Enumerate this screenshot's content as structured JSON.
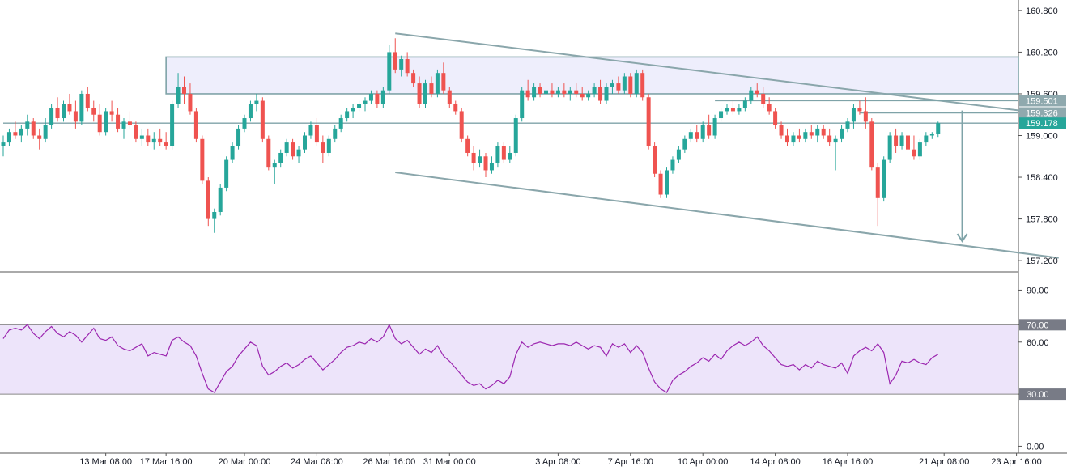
{
  "chart_data": [
    {
      "type": "candlestick",
      "price_ticks": [
        157.2,
        157.8,
        158.4,
        159.0,
        159.6,
        160.2,
        160.8
      ],
      "price_tick_labels": [
        "157.200",
        "157.800",
        "158.400",
        "159.000",
        "159.600",
        "160.200",
        "160.800"
      ],
      "ylim": [
        157.05,
        160.95
      ],
      "price_markers": [
        {
          "label": "159.501",
          "value": 159.501,
          "color": "#8fa9ae"
        },
        {
          "label": "159.326",
          "value": 159.326,
          "color": "#8fa9ae"
        },
        {
          "label": "159.178",
          "value": 159.178,
          "color": "#26a69a"
        }
      ],
      "x_tick_labels": [
        "13 Mar 08:00",
        "17 Mar 16:00",
        "20 Mar 00:00",
        "24 Mar 08:00",
        "26 Mar 16:00",
        "31 Mar 00:00",
        "3 Apr 08:00",
        "7 Apr 16:00",
        "10 Apr 00:00",
        "14 Apr 08:00",
        "16 Apr 16:00",
        "21 Apr 08:00",
        "23 Apr 16:00"
      ],
      "x_tick_index": [
        17,
        27,
        40,
        52,
        64,
        74,
        92,
        104,
        116,
        128,
        140,
        156,
        168
      ],
      "ohlc": [
        [
          158.85,
          159.0,
          158.7,
          158.9
        ],
        [
          158.9,
          159.1,
          158.85,
          159.05
        ],
        [
          159.05,
          159.2,
          158.95,
          159.0
        ],
        [
          159.0,
          159.15,
          158.9,
          159.1
        ],
        [
          159.1,
          159.3,
          159.0,
          159.2
        ],
        [
          159.2,
          159.25,
          158.95,
          159.0
        ],
        [
          159.0,
          159.1,
          158.8,
          158.95
        ],
        [
          158.95,
          159.25,
          158.9,
          159.15
        ],
        [
          159.15,
          159.45,
          159.1,
          159.4
        ],
        [
          159.4,
          159.55,
          159.2,
          159.25
        ],
        [
          159.25,
          159.5,
          159.2,
          159.45
        ],
        [
          159.45,
          159.6,
          159.3,
          159.35
        ],
        [
          159.35,
          159.5,
          159.1,
          159.2
        ],
        [
          159.2,
          159.65,
          159.15,
          159.6
        ],
        [
          159.6,
          159.7,
          159.35,
          159.4
        ],
        [
          159.4,
          159.5,
          159.2,
          159.3
        ],
        [
          159.3,
          159.45,
          159.0,
          159.05
        ],
        [
          159.05,
          159.4,
          159.0,
          159.35
        ],
        [
          159.35,
          159.5,
          159.2,
          159.3
        ],
        [
          159.3,
          159.4,
          159.05,
          159.1
        ],
        [
          159.1,
          159.25,
          158.95,
          159.2
        ],
        [
          159.2,
          159.35,
          159.1,
          159.15
        ],
        [
          159.15,
          159.2,
          158.9,
          158.95
        ],
        [
          158.95,
          159.1,
          158.85,
          159.0
        ],
        [
          159.0,
          159.1,
          158.85,
          158.9
        ],
        [
          158.9,
          159.05,
          158.8,
          158.95
        ],
        [
          158.95,
          159.1,
          158.85,
          158.9
        ],
        [
          158.9,
          159.05,
          158.8,
          158.85
        ],
        [
          158.85,
          159.5,
          158.8,
          159.45
        ],
        [
          159.45,
          159.9,
          159.4,
          159.7
        ],
        [
          159.7,
          159.85,
          159.45,
          159.6
        ],
        [
          159.6,
          159.75,
          159.3,
          159.35
        ],
        [
          159.35,
          159.4,
          158.9,
          158.95
        ],
        [
          158.95,
          159.0,
          158.3,
          158.35
        ],
        [
          158.35,
          158.4,
          157.7,
          157.8
        ],
        [
          157.8,
          157.95,
          157.6,
          157.9
        ],
        [
          157.9,
          158.3,
          157.85,
          158.25
        ],
        [
          158.25,
          158.7,
          158.2,
          158.65
        ],
        [
          158.65,
          158.9,
          158.6,
          158.85
        ],
        [
          158.85,
          159.15,
          158.8,
          159.1
        ],
        [
          159.1,
          159.3,
          159.05,
          159.25
        ],
        [
          159.25,
          159.5,
          159.2,
          159.45
        ],
        [
          159.45,
          159.6,
          159.35,
          159.5
        ],
        [
          159.5,
          159.55,
          158.9,
          158.95
        ],
        [
          158.95,
          159.0,
          158.5,
          158.55
        ],
        [
          158.55,
          158.65,
          158.3,
          158.6
        ],
        [
          158.6,
          158.8,
          158.55,
          158.75
        ],
        [
          158.75,
          158.95,
          158.7,
          158.9
        ],
        [
          158.9,
          158.95,
          158.65,
          158.7
        ],
        [
          158.7,
          158.85,
          158.6,
          158.8
        ],
        [
          158.8,
          159.05,
          158.75,
          159.0
        ],
        [
          159.0,
          159.2,
          158.95,
          159.15
        ],
        [
          159.15,
          159.25,
          158.85,
          158.9
        ],
        [
          158.9,
          159.0,
          158.6,
          158.75
        ],
        [
          158.75,
          159.0,
          158.7,
          158.95
        ],
        [
          158.95,
          159.15,
          158.9,
          159.1
        ],
        [
          159.1,
          159.3,
          159.05,
          159.25
        ],
        [
          159.25,
          159.4,
          159.2,
          159.35
        ],
        [
          159.35,
          159.45,
          159.25,
          159.4
        ],
        [
          159.4,
          159.5,
          159.35,
          159.45
        ],
        [
          159.45,
          159.55,
          159.35,
          159.5
        ],
        [
          159.5,
          159.65,
          159.45,
          159.6
        ],
        [
          159.6,
          159.65,
          159.4,
          159.45
        ],
        [
          159.45,
          159.7,
          159.4,
          159.65
        ],
        [
          159.65,
          160.3,
          159.6,
          160.2
        ],
        [
          160.2,
          160.4,
          159.9,
          159.95
        ],
        [
          159.95,
          160.15,
          159.85,
          160.1
        ],
        [
          160.1,
          160.2,
          159.85,
          159.9
        ],
        [
          159.9,
          159.95,
          159.7,
          159.75
        ],
        [
          159.75,
          159.85,
          159.4,
          159.45
        ],
        [
          159.45,
          159.8,
          159.4,
          159.75
        ],
        [
          159.75,
          159.85,
          159.55,
          159.6
        ],
        [
          159.6,
          159.95,
          159.55,
          159.9
        ],
        [
          159.9,
          160.05,
          159.6,
          159.65
        ],
        [
          159.65,
          159.7,
          159.4,
          159.45
        ],
        [
          159.45,
          159.5,
          159.3,
          159.35
        ],
        [
          159.35,
          159.4,
          158.9,
          158.95
        ],
        [
          158.95,
          159.0,
          158.7,
          158.75
        ],
        [
          158.75,
          158.85,
          158.5,
          158.6
        ],
        [
          158.6,
          158.8,
          158.55,
          158.7
        ],
        [
          158.7,
          158.75,
          158.4,
          158.5
        ],
        [
          158.5,
          158.7,
          158.45,
          158.6
        ],
        [
          158.6,
          158.9,
          158.55,
          158.85
        ],
        [
          158.85,
          158.9,
          158.6,
          158.65
        ],
        [
          158.65,
          158.85,
          158.6,
          158.75
        ],
        [
          158.75,
          159.3,
          158.7,
          159.25
        ],
        [
          159.25,
          159.7,
          159.2,
          159.65
        ],
        [
          159.65,
          159.8,
          159.5,
          159.55
        ],
        [
          159.55,
          159.75,
          159.5,
          159.7
        ],
        [
          159.7,
          159.75,
          159.55,
          159.6
        ],
        [
          159.6,
          159.7,
          159.5,
          159.65
        ],
        [
          159.65,
          159.75,
          159.55,
          159.6
        ],
        [
          159.6,
          159.7,
          159.55,
          159.65
        ],
        [
          159.65,
          159.75,
          159.55,
          159.6
        ],
        [
          159.6,
          159.7,
          159.5,
          159.65
        ],
        [
          159.65,
          159.75,
          159.55,
          159.6
        ],
        [
          159.6,
          159.7,
          159.5,
          159.55
        ],
        [
          159.55,
          159.65,
          159.5,
          159.6
        ],
        [
          159.6,
          159.75,
          159.55,
          159.7
        ],
        [
          159.7,
          159.8,
          159.45,
          159.5
        ],
        [
          159.5,
          159.75,
          159.45,
          159.7
        ],
        [
          159.7,
          159.8,
          159.6,
          159.75
        ],
        [
          159.75,
          159.85,
          159.6,
          159.65
        ],
        [
          159.65,
          159.9,
          159.6,
          159.85
        ],
        [
          159.85,
          159.9,
          159.55,
          159.6
        ],
        [
          159.6,
          159.95,
          159.55,
          159.9
        ],
        [
          159.9,
          159.95,
          159.5,
          159.55
        ],
        [
          159.55,
          159.6,
          158.8,
          158.85
        ],
        [
          158.85,
          158.9,
          158.4,
          158.45
        ],
        [
          158.45,
          158.5,
          158.1,
          158.15
        ],
        [
          158.15,
          158.55,
          158.1,
          158.5
        ],
        [
          158.5,
          158.7,
          158.45,
          158.65
        ],
        [
          158.65,
          158.85,
          158.6,
          158.8
        ],
        [
          158.8,
          159.0,
          158.75,
          158.95
        ],
        [
          158.95,
          159.1,
          158.9,
          159.05
        ],
        [
          159.05,
          159.15,
          158.9,
          158.95
        ],
        [
          158.95,
          159.2,
          158.9,
          159.15
        ],
        [
          159.15,
          159.3,
          158.95,
          159.0
        ],
        [
          159.0,
          159.3,
          158.95,
          159.25
        ],
        [
          159.25,
          159.4,
          159.2,
          159.35
        ],
        [
          159.35,
          159.45,
          159.3,
          159.4
        ],
        [
          159.4,
          159.5,
          159.3,
          159.35
        ],
        [
          159.35,
          159.45,
          159.3,
          159.4
        ],
        [
          159.4,
          159.55,
          159.35,
          159.5
        ],
        [
          159.5,
          159.7,
          159.45,
          159.65
        ],
        [
          159.65,
          159.75,
          159.55,
          159.6
        ],
        [
          159.6,
          159.7,
          159.4,
          159.45
        ],
        [
          159.45,
          159.55,
          159.3,
          159.35
        ],
        [
          159.35,
          159.4,
          159.1,
          159.15
        ],
        [
          159.15,
          159.2,
          158.95,
          159.0
        ],
        [
          159.0,
          159.1,
          158.85,
          158.9
        ],
        [
          158.9,
          159.05,
          158.85,
          159.0
        ],
        [
          159.0,
          159.1,
          158.9,
          158.95
        ],
        [
          158.95,
          159.1,
          158.9,
          159.05
        ],
        [
          159.05,
          159.15,
          158.95,
          159.0
        ],
        [
          159.0,
          159.15,
          158.9,
          159.1
        ],
        [
          159.1,
          159.15,
          158.95,
          159.0
        ],
        [
          159.0,
          159.1,
          158.85,
          158.9
        ],
        [
          158.9,
          159.0,
          158.5,
          158.95
        ],
        [
          158.95,
          159.15,
          158.9,
          159.1
        ],
        [
          159.1,
          159.25,
          159.05,
          159.2
        ],
        [
          159.2,
          159.45,
          159.1,
          159.4
        ],
        [
          159.4,
          159.5,
          159.3,
          159.35
        ],
        [
          159.35,
          159.55,
          159.1,
          159.2
        ],
        [
          159.2,
          159.25,
          158.5,
          158.55
        ],
        [
          158.55,
          158.6,
          157.7,
          158.1
        ],
        [
          158.1,
          158.7,
          158.05,
          158.65
        ],
        [
          158.65,
          159.05,
          158.6,
          159.0
        ],
        [
          159.0,
          159.1,
          158.75,
          158.85
        ],
        [
          158.85,
          159.05,
          158.8,
          159.0
        ],
        [
          159.0,
          159.05,
          158.75,
          158.8
        ],
        [
          158.8,
          159.0,
          158.65,
          158.7
        ],
        [
          158.7,
          158.95,
          158.65,
          158.9
        ],
        [
          158.9,
          159.05,
          158.85,
          159.0
        ],
        [
          159.0,
          159.05,
          158.95,
          159.02
        ],
        [
          159.02,
          159.2,
          158.98,
          159.178
        ]
      ],
      "annotations": [
        {
          "kind": "rectangle",
          "label": "resistance zone",
          "t0": 27,
          "t1": 178,
          "p_low": 159.6,
          "p_high": 160.13
        },
        {
          "kind": "trendline",
          "label": "upper channel",
          "t0": 65,
          "p0": 160.47,
          "t1": 175,
          "p1": 159.29
        },
        {
          "kind": "trendline",
          "label": "lower channel",
          "t0": 65,
          "p0": 158.47,
          "t1": 175,
          "p1": 157.24
        },
        {
          "kind": "hline",
          "value": 159.501,
          "t0": 118,
          "t1": 178
        },
        {
          "kind": "hline",
          "value": 159.326,
          "t0": 142,
          "t1": 178
        },
        {
          "kind": "hline",
          "value": 159.178,
          "t0": 0,
          "t1": 178
        },
        {
          "kind": "arrow",
          "label": "projection",
          "t": 159,
          "from": 159.36,
          "to": 157.48
        }
      ]
    },
    {
      "type": "line",
      "indicator": "RSI",
      "ticks": [
        0,
        30,
        60,
        70,
        90
      ],
      "tick_labels": [
        "0.00",
        "30.00",
        "60.00",
        "70.00",
        "90.00"
      ],
      "highlight_labels": [
        "70.00",
        "30.00"
      ],
      "ylim": [
        -4,
        100
      ],
      "band": [
        30,
        70
      ],
      "band_color": "#ede4fa",
      "line_color": "#9c27b0",
      "values": [
        62,
        67,
        68,
        67,
        70,
        65,
        62,
        66,
        69,
        65,
        63,
        66,
        64,
        60,
        64,
        68,
        62,
        61,
        63,
        58,
        56,
        55,
        57,
        59,
        52,
        54,
        53,
        52,
        61,
        63,
        60,
        58,
        52,
        42,
        33,
        31,
        37,
        43,
        46,
        52,
        56,
        60,
        58,
        46,
        41,
        43,
        46,
        48,
        45,
        47,
        50,
        52,
        48,
        44,
        47,
        50,
        54,
        57,
        58,
        60,
        59,
        62,
        60,
        63,
        70,
        62,
        59,
        61,
        57,
        53,
        56,
        54,
        58,
        52,
        49,
        45,
        41,
        37,
        35,
        36,
        33,
        35,
        38,
        36,
        40,
        53,
        60,
        57,
        59,
        60,
        59,
        58,
        59,
        59,
        58,
        60,
        58,
        56,
        58,
        57,
        52,
        59,
        57,
        59,
        54,
        58,
        54,
        45,
        37,
        33,
        31,
        38,
        41,
        43,
        46,
        48,
        51,
        49,
        53,
        50,
        55,
        58,
        60,
        58,
        60,
        63,
        58,
        55,
        51,
        47,
        46,
        47,
        44,
        47,
        45,
        49,
        47,
        46,
        45,
        48,
        42,
        52,
        55,
        57,
        55,
        59,
        54,
        36,
        41,
        49,
        48,
        50,
        48,
        47,
        51,
        53
      ]
    }
  ]
}
